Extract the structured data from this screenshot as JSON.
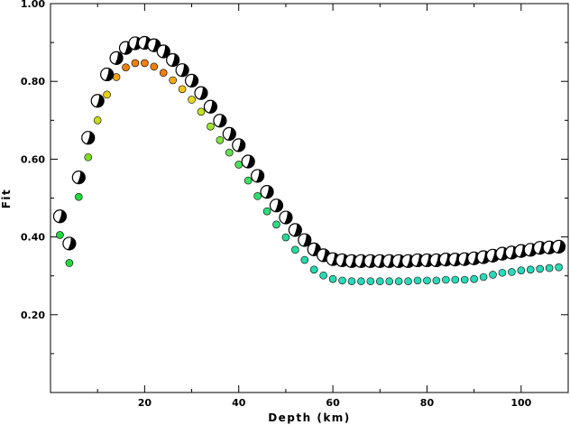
{
  "chart_data": {
    "type": "scatter",
    "title": "",
    "xlabel": "Depth (km)",
    "ylabel": "Fit",
    "xlim": [
      0,
      110
    ],
    "ylim": [
      0,
      1.0
    ],
    "xticks": [
      20,
      40,
      60,
      80,
      100
    ],
    "yticks": [
      0.2,
      0.4,
      0.6,
      0.8,
      1.0
    ],
    "xtick_labels": [
      "20",
      "40",
      "60",
      "80",
      "100"
    ],
    "ytick_labels": [
      "0.20",
      "0.40",
      "0.60",
      "0.80",
      "1.00"
    ],
    "grid": false,
    "legend": "none",
    "series": [
      {
        "marker": "mechanism",
        "x": [
          2,
          4,
          6,
          8,
          10,
          12,
          14,
          16,
          18,
          20,
          22,
          24,
          26,
          28,
          30,
          32,
          34,
          36,
          38,
          40,
          42,
          44,
          46,
          48,
          50,
          52,
          54,
          56,
          58,
          60,
          62,
          64,
          66,
          68,
          70,
          72,
          74,
          76,
          78,
          80,
          82,
          84,
          86,
          88,
          90,
          92,
          94,
          96,
          98,
          100,
          102,
          104,
          106,
          108
        ],
        "y": [
          0.453,
          0.383,
          0.553,
          0.655,
          0.75,
          0.818,
          0.86,
          0.886,
          0.898,
          0.899,
          0.893,
          0.877,
          0.855,
          0.829,
          0.802,
          0.77,
          0.735,
          0.699,
          0.665,
          0.636,
          0.594,
          0.557,
          0.516,
          0.481,
          0.45,
          0.418,
          0.392,
          0.368,
          0.353,
          0.343,
          0.34,
          0.338,
          0.338,
          0.338,
          0.338,
          0.338,
          0.338,
          0.338,
          0.34,
          0.34,
          0.34,
          0.342,
          0.342,
          0.343,
          0.345,
          0.348,
          0.352,
          0.357,
          0.36,
          0.364,
          0.367,
          0.372,
          0.373,
          0.375
        ]
      },
      {
        "marker": "dot",
        "x": [
          2,
          4,
          6,
          8,
          10,
          12,
          14,
          16,
          18,
          20,
          22,
          24,
          26,
          28,
          30,
          32,
          34,
          36,
          38,
          40,
          42,
          44,
          46,
          48,
          50,
          52,
          54,
          56,
          58,
          60,
          62,
          64,
          66,
          68,
          70,
          72,
          74,
          76,
          78,
          80,
          82,
          84,
          86,
          88,
          90,
          92,
          94,
          96,
          98,
          100,
          102,
          104,
          106,
          108
        ],
        "y": [
          0.405,
          0.333,
          0.503,
          0.605,
          0.7,
          0.766,
          0.811,
          0.836,
          0.847,
          0.847,
          0.838,
          0.822,
          0.803,
          0.78,
          0.753,
          0.722,
          0.684,
          0.649,
          0.617,
          0.586,
          0.545,
          0.505,
          0.466,
          0.432,
          0.399,
          0.367,
          0.341,
          0.316,
          0.301,
          0.292,
          0.288,
          0.286,
          0.286,
          0.286,
          0.286,
          0.286,
          0.286,
          0.286,
          0.288,
          0.288,
          0.288,
          0.29,
          0.29,
          0.29,
          0.292,
          0.297,
          0.303,
          0.308,
          0.31,
          0.314,
          0.316,
          0.318,
          0.32,
          0.322
        ],
        "colors": [
          "#22d93a",
          "#22d93a",
          "#22d93a",
          "#7cdc2a",
          "#c8dc1c",
          "#e8cf12",
          "#f0a010",
          "#f07f10",
          "#f07f10",
          "#f07f10",
          "#f07f10",
          "#f07f10",
          "#f5a818",
          "#f2c514",
          "#e4d81a",
          "#c2e426",
          "#9ee632",
          "#7fe53e",
          "#5fe34e",
          "#49e15a",
          "#3ddf65",
          "#33de70",
          "#2edc7c",
          "#2cdb88",
          "#2bd994",
          "#2ad99e",
          "#2ad9a8",
          "#2ad9ae",
          "#2ad9b2",
          "#2ad9b4",
          "#2ad9b6",
          "#2ad9b6",
          "#2ad9b6",
          "#2ad9b6",
          "#2ad9b6",
          "#2ad9b6",
          "#2ad9b6",
          "#2ad9b6",
          "#2ad9b6",
          "#2ad9b6",
          "#2ad9b6",
          "#2ad9b6",
          "#2ad9b6",
          "#2ad9b6",
          "#2ad9b6",
          "#2ad9b6",
          "#2ad9b6",
          "#2ad9b6",
          "#2ad9b6",
          "#2ad9b6",
          "#2ad9b6",
          "#2ad9b6",
          "#2ad9b6",
          "#2ad9b6"
        ]
      }
    ]
  }
}
